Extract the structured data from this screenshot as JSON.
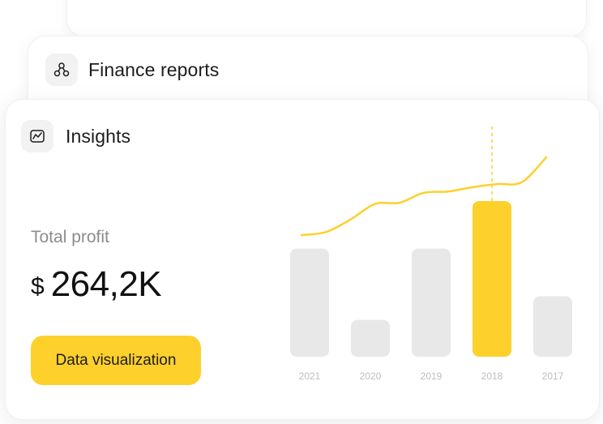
{
  "cards": {
    "finance": {
      "title": "Finance reports",
      "icon": "network-nodes-icon"
    },
    "insights": {
      "title": "Insights",
      "icon": "chart-frame-icon"
    }
  },
  "profit": {
    "label": "Total profit",
    "currency": "$",
    "amount": "264,2K"
  },
  "button": {
    "label": "Data visualization"
  },
  "colors": {
    "accent": "#fdd02c",
    "bar_default": "#e8e8e8",
    "bar_highlight": "#fdd02c",
    "line": "#fdd02c"
  },
  "chart_data": {
    "type": "bar",
    "categories": [
      "2021",
      "2020",
      "2019",
      "2018",
      "2017"
    ],
    "values": [
      100,
      34,
      100,
      144,
      56
    ],
    "highlight": "2018",
    "ylim": [
      0,
      150
    ],
    "grid": false,
    "overlay_line": {
      "type": "line",
      "values": [
        30,
        35,
        55,
        80,
        82,
        98,
        100,
        107,
        112,
        115,
        155
      ]
    }
  }
}
